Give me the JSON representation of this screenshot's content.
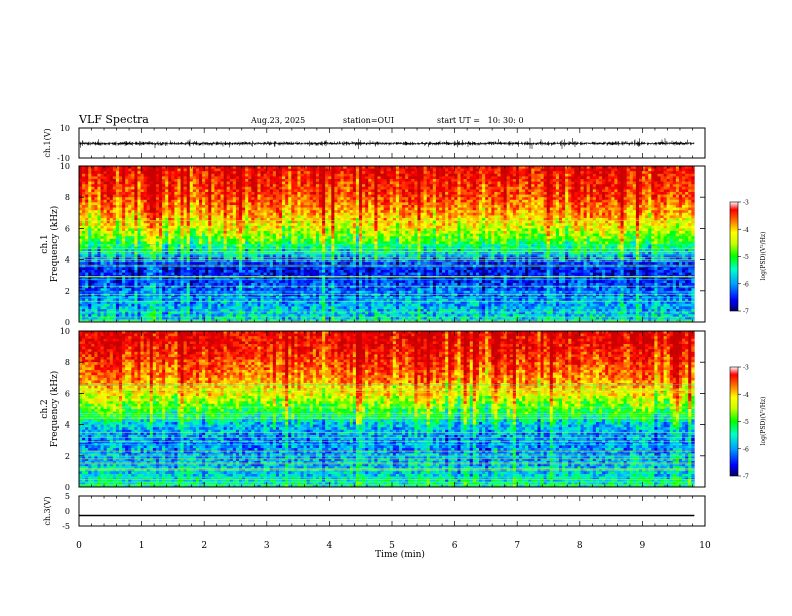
{
  "header": {
    "title": "VLF Spectra",
    "date": "Aug.23, 2025",
    "station": "station=OUI",
    "start": "start UT =   10: 30: 0"
  },
  "chart_data": [
    {
      "type": "line",
      "panel": "ch1-waveform",
      "ylabel": "ch.1(V)",
      "ylim": [
        -10,
        10
      ],
      "yticks": [
        "10",
        "-10"
      ],
      "xlim": [
        0,
        10
      ],
      "x_extent": [
        0,
        9.83
      ],
      "baseline": -0.3,
      "typical_amplitude": 1.2,
      "spike_amplitude": 4.5
    },
    {
      "type": "heatmap",
      "panel": "ch1-spectrogram",
      "ylabel_line1": "ch.1",
      "ylabel_line2": "Frequency (kHz)",
      "ylim": [
        0,
        10
      ],
      "yticks": [
        "0",
        "2",
        "4",
        "6",
        "8",
        "10"
      ],
      "xlim": [
        0,
        10
      ],
      "x_extent": [
        0,
        9.83
      ],
      "color_variable": "log(PSD)(V²/Hz)",
      "color_range": [
        -7,
        -3
      ],
      "colorbar_ticks": [
        "-3",
        "-4",
        "-5",
        "-6",
        "-7"
      ],
      "band_profile_khz": [
        0,
        1,
        2,
        3,
        3.5,
        4,
        5,
        6,
        7,
        8,
        9,
        10
      ],
      "band_profile_value": [
        -5.8,
        -6.0,
        -6.3,
        -6.6,
        -6.6,
        -6.3,
        -5.3,
        -4.6,
        -4.1,
        -3.7,
        -3.5,
        -3.3
      ]
    },
    {
      "type": "heatmap",
      "panel": "ch2-spectrogram",
      "ylabel_line1": "ch.2",
      "ylabel_line2": "Frequency (kHz)",
      "ylim": [
        0,
        10
      ],
      "yticks": [
        "0",
        "2",
        "4",
        "6",
        "8",
        "10"
      ],
      "xlim": [
        0,
        10
      ],
      "x_extent": [
        0,
        9.83
      ],
      "color_variable": "log(PSD)(V²/Hz)",
      "color_range": [
        -7,
        -3
      ],
      "colorbar_ticks": [
        "-3",
        "-4",
        "-5",
        "-6",
        "-7"
      ],
      "band_profile_khz": [
        0,
        1,
        2,
        3,
        4,
        5,
        6,
        7,
        8,
        9,
        10
      ],
      "band_profile_value": [
        -5.6,
        -5.9,
        -6.1,
        -6.2,
        -5.9,
        -5.2,
        -4.5,
        -4.0,
        -3.7,
        -3.4,
        -3.3
      ]
    },
    {
      "type": "line",
      "panel": "ch3-waveform",
      "ylabel": "ch.3(V)",
      "ylim": [
        -5,
        5
      ],
      "yticks": [
        "5",
        "0",
        "-5"
      ],
      "xlim": [
        0,
        10
      ],
      "x_extent": [
        0,
        9.83
      ],
      "constant_value": -1.5
    }
  ],
  "xaxis": {
    "label": "Time (min)",
    "ticks": [
      "0",
      "1",
      "2",
      "3",
      "4",
      "5",
      "6",
      "7",
      "8",
      "9",
      "10"
    ]
  },
  "colors": {
    "colormap": [
      "#000066",
      "#0000ff",
      "#0064ff",
      "#00c8ff",
      "#00ff96",
      "#00ff00",
      "#96ff00",
      "#ffff00",
      "#ffb400",
      "#ff5000",
      "#ff0000",
      "#c80000"
    ],
    "trace": "#000000"
  }
}
